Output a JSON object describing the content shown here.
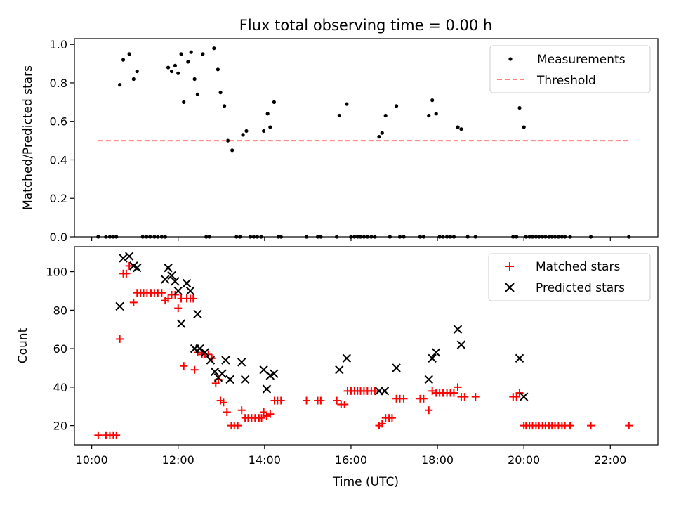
{
  "chart_data": [
    {
      "type": "scatter",
      "title": "Flux total observing time = 0.00 h",
      "xlabel": "",
      "ylabel": "Matched/Predicted stars",
      "xlim": [
        9.6,
        23.1
      ],
      "ylim": [
        0,
        1.03
      ],
      "yticks": [
        0.0,
        0.2,
        0.4,
        0.6,
        0.8,
        1.0
      ],
      "ytick_labels": [
        "0.0",
        "0.2",
        "0.4",
        "0.6",
        "0.8",
        "1.0"
      ],
      "xticks": [
        10,
        12,
        14,
        16,
        18,
        20,
        22
      ],
      "legend_position": "top-right",
      "grid": false,
      "series": [
        {
          "name": "Measurements",
          "kind": "scatter",
          "color": "#000000",
          "points": [
            [
              10.15,
              0
            ],
            [
              10.33,
              0
            ],
            [
              10.42,
              0
            ],
            [
              10.5,
              0
            ],
            [
              10.57,
              0
            ],
            [
              10.65,
              0.79
            ],
            [
              10.73,
              0.92
            ],
            [
              10.87,
              0.95
            ],
            [
              10.97,
              0.82
            ],
            [
              11.05,
              0.86
            ],
            [
              11.18,
              0
            ],
            [
              11.27,
              0
            ],
            [
              11.35,
              0
            ],
            [
              11.45,
              0
            ],
            [
              11.53,
              0
            ],
            [
              11.62,
              0
            ],
            [
              11.7,
              0
            ],
            [
              11.77,
              0.88
            ],
            [
              11.85,
              0.86
            ],
            [
              11.93,
              0.89
            ],
            [
              12.0,
              0.85
            ],
            [
              12.07,
              0.95
            ],
            [
              12.13,
              0.7
            ],
            [
              12.23,
              0.91
            ],
            [
              12.3,
              0.96
            ],
            [
              12.38,
              0.82
            ],
            [
              12.45,
              0.74
            ],
            [
              12.57,
              0.95
            ],
            [
              12.65,
              0
            ],
            [
              12.72,
              0
            ],
            [
              12.83,
              0.98
            ],
            [
              12.92,
              0.87
            ],
            [
              12.98,
              0.75
            ],
            [
              13.07,
              0.68
            ],
            [
              13.15,
              0.5
            ],
            [
              13.25,
              0.45
            ],
            [
              13.35,
              0
            ],
            [
              13.43,
              0
            ],
            [
              13.5,
              0.53
            ],
            [
              13.58,
              0.55
            ],
            [
              13.67,
              0
            ],
            [
              13.75,
              0
            ],
            [
              13.83,
              0
            ],
            [
              13.92,
              0
            ],
            [
              13.98,
              0.55
            ],
            [
              14.07,
              0.64
            ],
            [
              14.13,
              0.57
            ],
            [
              14.22,
              0.7
            ],
            [
              14.32,
              0
            ],
            [
              14.38,
              0
            ],
            [
              14.97,
              0
            ],
            [
              15.23,
              0
            ],
            [
              15.3,
              0
            ],
            [
              15.67,
              0
            ],
            [
              15.73,
              0.63
            ],
            [
              15.9,
              0.69
            ],
            [
              16.0,
              0
            ],
            [
              16.08,
              0
            ],
            [
              16.15,
              0
            ],
            [
              16.22,
              0
            ],
            [
              16.3,
              0
            ],
            [
              16.38,
              0
            ],
            [
              16.47,
              0
            ],
            [
              16.55,
              0
            ],
            [
              16.65,
              0.52
            ],
            [
              16.72,
              0.54
            ],
            [
              16.8,
              0.63
            ],
            [
              16.9,
              0
            ],
            [
              17.05,
              0.68
            ],
            [
              17.13,
              0
            ],
            [
              17.22,
              0
            ],
            [
              17.6,
              0
            ],
            [
              17.68,
              0
            ],
            [
              17.8,
              0.63
            ],
            [
              17.88,
              0.71
            ],
            [
              17.97,
              0.64
            ],
            [
              18.05,
              0
            ],
            [
              18.13,
              0
            ],
            [
              18.22,
              0
            ],
            [
              18.3,
              0
            ],
            [
              18.38,
              0
            ],
            [
              18.47,
              0.57
            ],
            [
              18.55,
              0.56
            ],
            [
              18.7,
              0
            ],
            [
              18.88,
              0
            ],
            [
              19.75,
              0
            ],
            [
              19.83,
              0
            ],
            [
              19.9,
              0.67
            ],
            [
              20.0,
              0.57
            ],
            [
              20.05,
              0
            ],
            [
              20.13,
              0
            ],
            [
              20.2,
              0
            ],
            [
              20.28,
              0
            ],
            [
              20.35,
              0
            ],
            [
              20.43,
              0
            ],
            [
              20.5,
              0
            ],
            [
              20.58,
              0
            ],
            [
              20.65,
              0
            ],
            [
              20.72,
              0
            ],
            [
              20.8,
              0
            ],
            [
              20.88,
              0
            ],
            [
              20.95,
              0
            ],
            [
              21.07,
              0
            ],
            [
              21.55,
              0
            ],
            [
              22.43,
              0
            ]
          ]
        },
        {
          "name": "Threshold",
          "kind": "dashed-line",
          "color": "#ff7f7f",
          "points": [
            [
              10.15,
              0.5
            ],
            [
              22.43,
              0.5
            ]
          ]
        }
      ]
    },
    {
      "type": "scatter",
      "title": "",
      "xlabel": "Time (UTC)",
      "ylabel": "Count",
      "xlim": [
        9.6,
        23.1
      ],
      "ylim": [
        10,
        113
      ],
      "yticks": [
        20,
        40,
        60,
        80,
        100
      ],
      "ytick_labels": [
        "20",
        "40",
        "60",
        "80",
        "100"
      ],
      "xticks": [
        10,
        12,
        14,
        16,
        18,
        20,
        22
      ],
      "xtick_labels": [
        "10:00",
        "12:00",
        "14:00",
        "16:00",
        "18:00",
        "20:00",
        "22:00"
      ],
      "legend_position": "top-right",
      "grid": false,
      "series": [
        {
          "name": "Matched stars",
          "kind": "plus",
          "color": "#ff0000",
          "points": [
            [
              10.15,
              15
            ],
            [
              10.33,
              15
            ],
            [
              10.42,
              15
            ],
            [
              10.5,
              15
            ],
            [
              10.57,
              15
            ],
            [
              10.65,
              65
            ],
            [
              10.73,
              99
            ],
            [
              10.8,
              99
            ],
            [
              10.87,
              103
            ],
            [
              10.97,
              84
            ],
            [
              11.05,
              89
            ],
            [
              11.13,
              89
            ],
            [
              11.2,
              89
            ],
            [
              11.28,
              89
            ],
            [
              11.37,
              89
            ],
            [
              11.45,
              89
            ],
            [
              11.53,
              89
            ],
            [
              11.62,
              89
            ],
            [
              11.7,
              85
            ],
            [
              11.77,
              86
            ],
            [
              11.85,
              88
            ],
            [
              11.93,
              88
            ],
            [
              12.0,
              81
            ],
            [
              12.07,
              86
            ],
            [
              12.13,
              51
            ],
            [
              12.2,
              86
            ],
            [
              12.28,
              86
            ],
            [
              12.35,
              86
            ],
            [
              12.38,
              49
            ],
            [
              12.45,
              58
            ],
            [
              12.55,
              57
            ],
            [
              12.62,
              57
            ],
            [
              12.7,
              57
            ],
            [
              12.78,
              55
            ],
            [
              12.87,
              42
            ],
            [
              12.93,
              44
            ],
            [
              12.98,
              33
            ],
            [
              13.05,
              32
            ],
            [
              13.13,
              27
            ],
            [
              13.23,
              20
            ],
            [
              13.3,
              20
            ],
            [
              13.38,
              20
            ],
            [
              13.47,
              28
            ],
            [
              13.55,
              24
            ],
            [
              13.62,
              24
            ],
            [
              13.7,
              24
            ],
            [
              13.78,
              24
            ],
            [
              13.87,
              24
            ],
            [
              13.93,
              24
            ],
            [
              13.98,
              27
            ],
            [
              14.05,
              25
            ],
            [
              14.13,
              26
            ],
            [
              14.23,
              33
            ],
            [
              14.3,
              33
            ],
            [
              14.38,
              33
            ],
            [
              14.97,
              33
            ],
            [
              15.23,
              33
            ],
            [
              15.3,
              33
            ],
            [
              15.67,
              33
            ],
            [
              15.77,
              31
            ],
            [
              15.85,
              31
            ],
            [
              15.92,
              38
            ],
            [
              16.0,
              38
            ],
            [
              16.08,
              38
            ],
            [
              16.15,
              38
            ],
            [
              16.22,
              38
            ],
            [
              16.3,
              38
            ],
            [
              16.38,
              38
            ],
            [
              16.47,
              38
            ],
            [
              16.55,
              38
            ],
            [
              16.65,
              20
            ],
            [
              16.72,
              21
            ],
            [
              16.8,
              24
            ],
            [
              16.88,
              24
            ],
            [
              16.95,
              24
            ],
            [
              17.05,
              34
            ],
            [
              17.13,
              34
            ],
            [
              17.22,
              34
            ],
            [
              17.6,
              34
            ],
            [
              17.68,
              34
            ],
            [
              17.8,
              28
            ],
            [
              17.88,
              38
            ],
            [
              17.97,
              37
            ],
            [
              18.05,
              37
            ],
            [
              18.13,
              37
            ],
            [
              18.22,
              37
            ],
            [
              18.3,
              37
            ],
            [
              18.38,
              37
            ],
            [
              18.47,
              40
            ],
            [
              18.55,
              35
            ],
            [
              18.63,
              35
            ],
            [
              18.88,
              35
            ],
            [
              19.75,
              35
            ],
            [
              19.83,
              35
            ],
            [
              19.9,
              37
            ],
            [
              20.0,
              20
            ],
            [
              20.05,
              20
            ],
            [
              20.13,
              20
            ],
            [
              20.2,
              20
            ],
            [
              20.28,
              20
            ],
            [
              20.35,
              20
            ],
            [
              20.43,
              20
            ],
            [
              20.5,
              20
            ],
            [
              20.58,
              20
            ],
            [
              20.65,
              20
            ],
            [
              20.72,
              20
            ],
            [
              20.8,
              20
            ],
            [
              20.88,
              20
            ],
            [
              20.95,
              20
            ],
            [
              21.07,
              20
            ],
            [
              21.55,
              20
            ],
            [
              22.43,
              20
            ]
          ]
        },
        {
          "name": "Predicted stars",
          "kind": "cross",
          "color": "#000000",
          "points": [
            [
              10.65,
              82
            ],
            [
              10.73,
              107
            ],
            [
              10.87,
              108
            ],
            [
              10.97,
              103
            ],
            [
              11.05,
              102
            ],
            [
              11.7,
              96
            ],
            [
              11.77,
              102
            ],
            [
              11.85,
              98
            ],
            [
              11.93,
              95
            ],
            [
              12.0,
              90
            ],
            [
              12.07,
              73
            ],
            [
              12.2,
              94
            ],
            [
              12.28,
              90
            ],
            [
              12.45,
              78
            ],
            [
              12.38,
              60
            ],
            [
              12.5,
              60
            ],
            [
              12.62,
              58
            ],
            [
              12.75,
              54
            ],
            [
              12.85,
              48
            ],
            [
              12.93,
              45
            ],
            [
              13.02,
              47
            ],
            [
              13.1,
              54
            ],
            [
              13.2,
              44
            ],
            [
              13.47,
              53
            ],
            [
              13.55,
              44
            ],
            [
              13.98,
              49
            ],
            [
              14.05,
              39
            ],
            [
              14.13,
              46
            ],
            [
              14.22,
              47
            ],
            [
              15.73,
              49
            ],
            [
              15.9,
              55
            ],
            [
              16.65,
              38
            ],
            [
              16.78,
              38
            ],
            [
              17.05,
              50
            ],
            [
              17.8,
              44
            ],
            [
              17.88,
              55
            ],
            [
              17.97,
              58
            ],
            [
              18.47,
              70
            ],
            [
              18.55,
              62
            ],
            [
              19.9,
              55
            ],
            [
              20.0,
              35
            ]
          ]
        }
      ]
    }
  ]
}
